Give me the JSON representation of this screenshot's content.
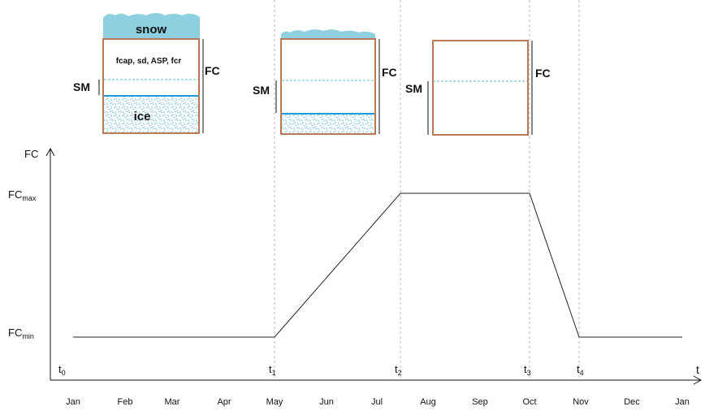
{
  "boxes": {
    "snow_label": "snow",
    "params_label": "fcap, sd, ASP, fcr",
    "ice_label": "ice",
    "fc_label": "FC",
    "sm_label": "SM"
  },
  "axes": {
    "y_label": "FC",
    "x_label": "t",
    "fc_max_main": "FC",
    "fc_max_sub": "max",
    "fc_min_main": "FC",
    "fc_min_sub": "min"
  },
  "time_markers": [
    {
      "main": "t",
      "sub": "0"
    },
    {
      "main": "t",
      "sub": "1"
    },
    {
      "main": "t",
      "sub": "2"
    },
    {
      "main": "t",
      "sub": "3"
    },
    {
      "main": "t",
      "sub": "4"
    }
  ],
  "months": [
    "Jan",
    "Feb",
    "Mar",
    "Apr",
    "May",
    "Jun",
    "Jul",
    "Aug",
    "Sep",
    "Oct",
    "Nov",
    "Dec",
    "Jan"
  ],
  "colors": {
    "box_border": "#b87a55",
    "snow": "#8fd0e0",
    "ice_line": "#1a9cd8",
    "ice_texture": "#7cc4e4",
    "dashed_guides": "#bbbbbb",
    "curve": "#222222"
  },
  "chart_data": {
    "type": "line",
    "x": [
      "Jan",
      "May",
      "Jul 15",
      "Oct",
      "Nov",
      "Jan"
    ],
    "y": [
      "FCmin",
      "FCmin",
      "FCmax",
      "FCmax",
      "FCmin",
      "FCmin"
    ]
  }
}
